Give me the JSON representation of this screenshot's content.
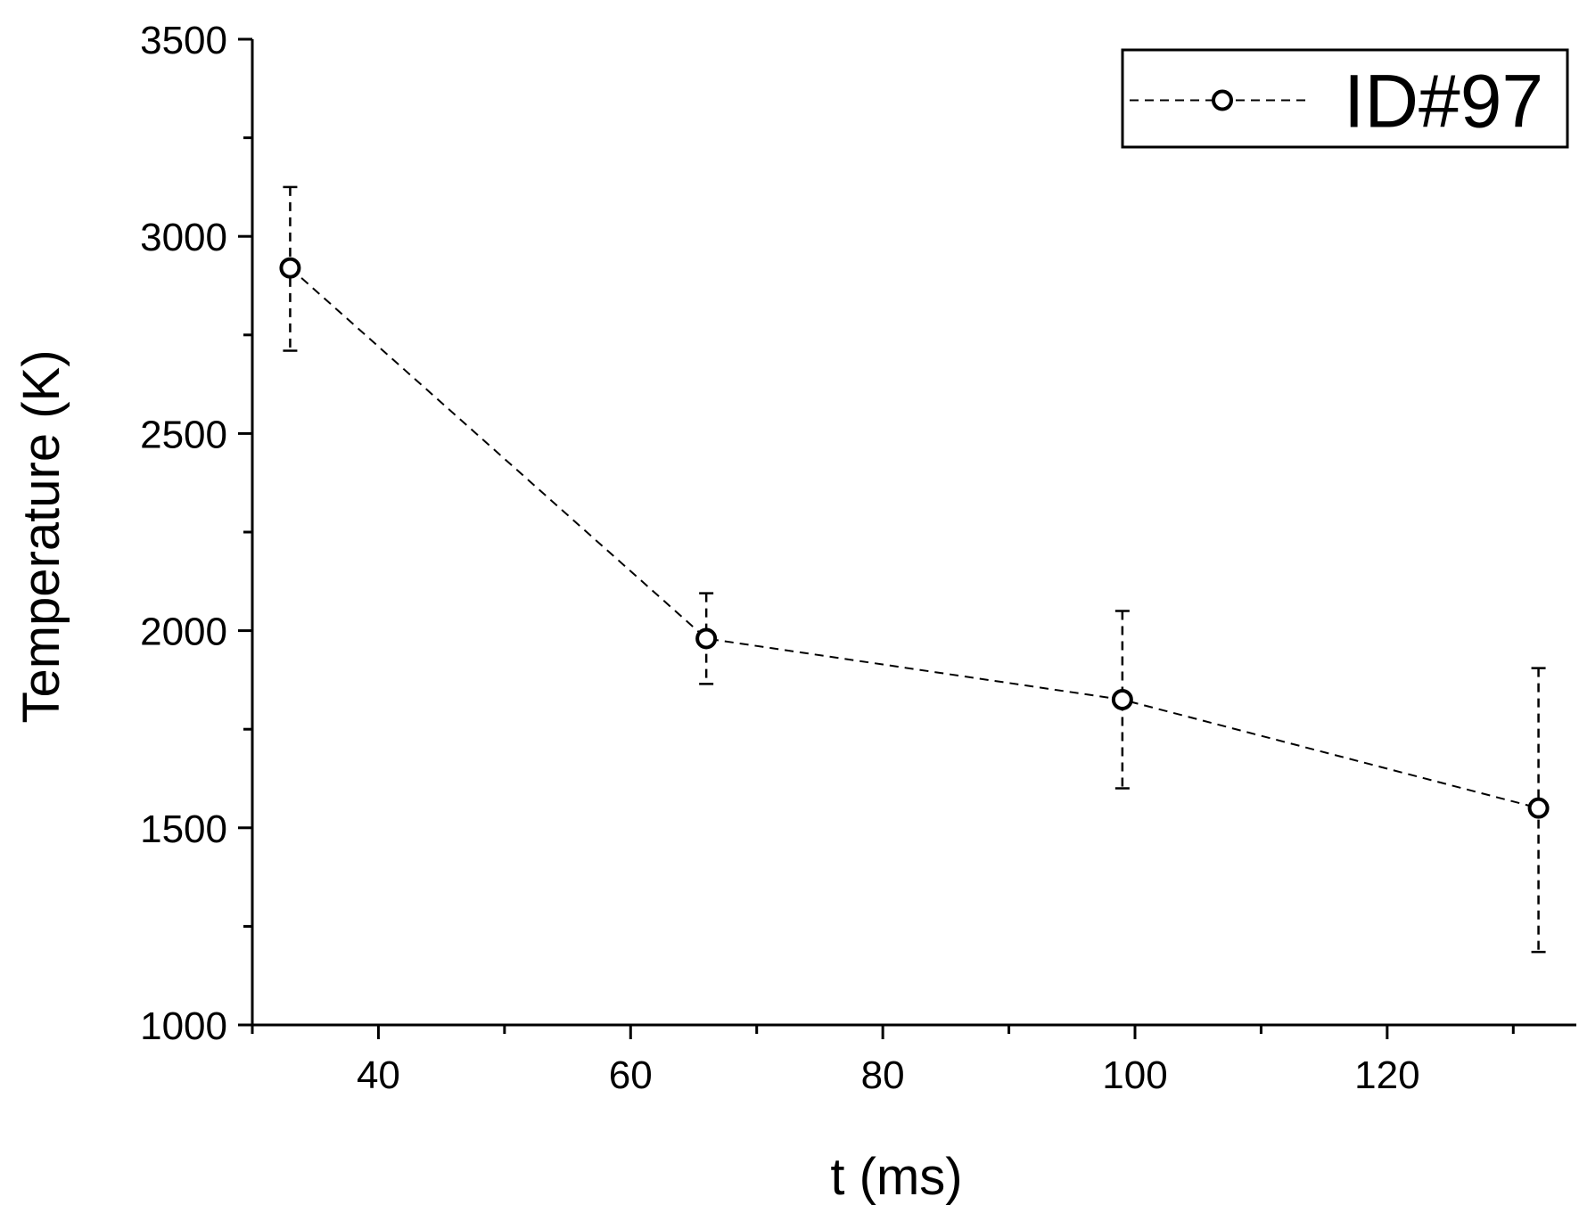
{
  "chart_data": {
    "type": "scatter",
    "xlabel": "t (ms)",
    "ylabel": "Temperature (K)",
    "xlim": [
      30,
      135
    ],
    "ylim": [
      1000,
      3500
    ],
    "x_ticks_major": [
      40,
      60,
      80,
      100,
      120
    ],
    "x_ticks_minor": [
      30,
      50,
      70,
      90,
      110,
      130
    ],
    "y_ticks_major": [
      1000,
      1500,
      2000,
      2500,
      3000,
      3500
    ],
    "y_ticks_minor": [
      1250,
      1750,
      2250,
      2750,
      3250
    ],
    "grid": false,
    "legend_position": "top-right",
    "series": [
      {
        "name": "ID#97",
        "line_style": "dashed",
        "marker": "open-circle",
        "x": [
          33,
          66,
          99,
          132
        ],
        "y": [
          2920,
          1980,
          1825,
          1550
        ],
        "y_err_low": [
          2710,
          1865,
          1600,
          1185
        ],
        "y_err_high": [
          3125,
          2095,
          2050,
          1905
        ]
      }
    ]
  }
}
